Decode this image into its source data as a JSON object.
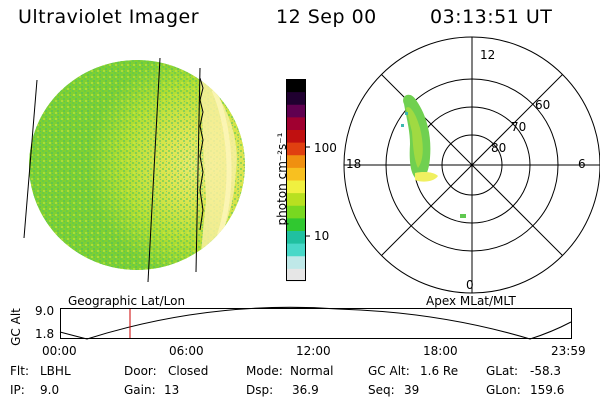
{
  "header": {
    "instrument": "Ultraviolet Imager",
    "date": "12 Sep 00",
    "time": "03:13:51 UT"
  },
  "colorbar": {
    "unit_label": "photon cm⁻²s⁻¹",
    "ticks": [
      "100",
      "10"
    ],
    "colors": [
      "#e6e6e6",
      "#bfe8e8",
      "#48d8c8",
      "#20c0a0",
      "#30c830",
      "#78d820",
      "#b8e020",
      "#f0f040",
      "#f8c020",
      "#f09010",
      "#e04010",
      "#c01010",
      "#a00030",
      "#600050",
      "#200030",
      "#000000"
    ]
  },
  "polar": {
    "mlt_labels": {
      "top": "12",
      "left": "18",
      "right": "6",
      "bottom": "0"
    },
    "lat_labels": [
      "60",
      "70",
      "80"
    ]
  },
  "timeline": {
    "y_axis_label": "GC Alt",
    "y_ticks": [
      "9.0",
      "1.8"
    ],
    "left_title": "Geographic Lat/Lon",
    "right_title": "Apex MLat/MLT",
    "x_ticks": [
      "00:00",
      "06:00",
      "12:00",
      "18:00",
      "23:59"
    ],
    "marker_color": "#cc0000"
  },
  "info": {
    "row1": [
      {
        "key": "Flt:",
        "value": "LBHL"
      },
      {
        "key": "Door:",
        "value": "Closed"
      },
      {
        "key": "Mode:",
        "value": "Normal"
      },
      {
        "key": "GC Alt:",
        "value": "1.6 Re"
      },
      {
        "key": "GLat:",
        "value": "-58.3"
      }
    ],
    "row2": [
      {
        "key": "IP:",
        "value": "9.0"
      },
      {
        "key": "Gain:",
        "value": "13"
      },
      {
        "key": "Dsp:",
        "value": "36.9"
      },
      {
        "key": "Seq:",
        "value": "39"
      },
      {
        "key": "GLon:",
        "value": "159.6"
      }
    ]
  }
}
